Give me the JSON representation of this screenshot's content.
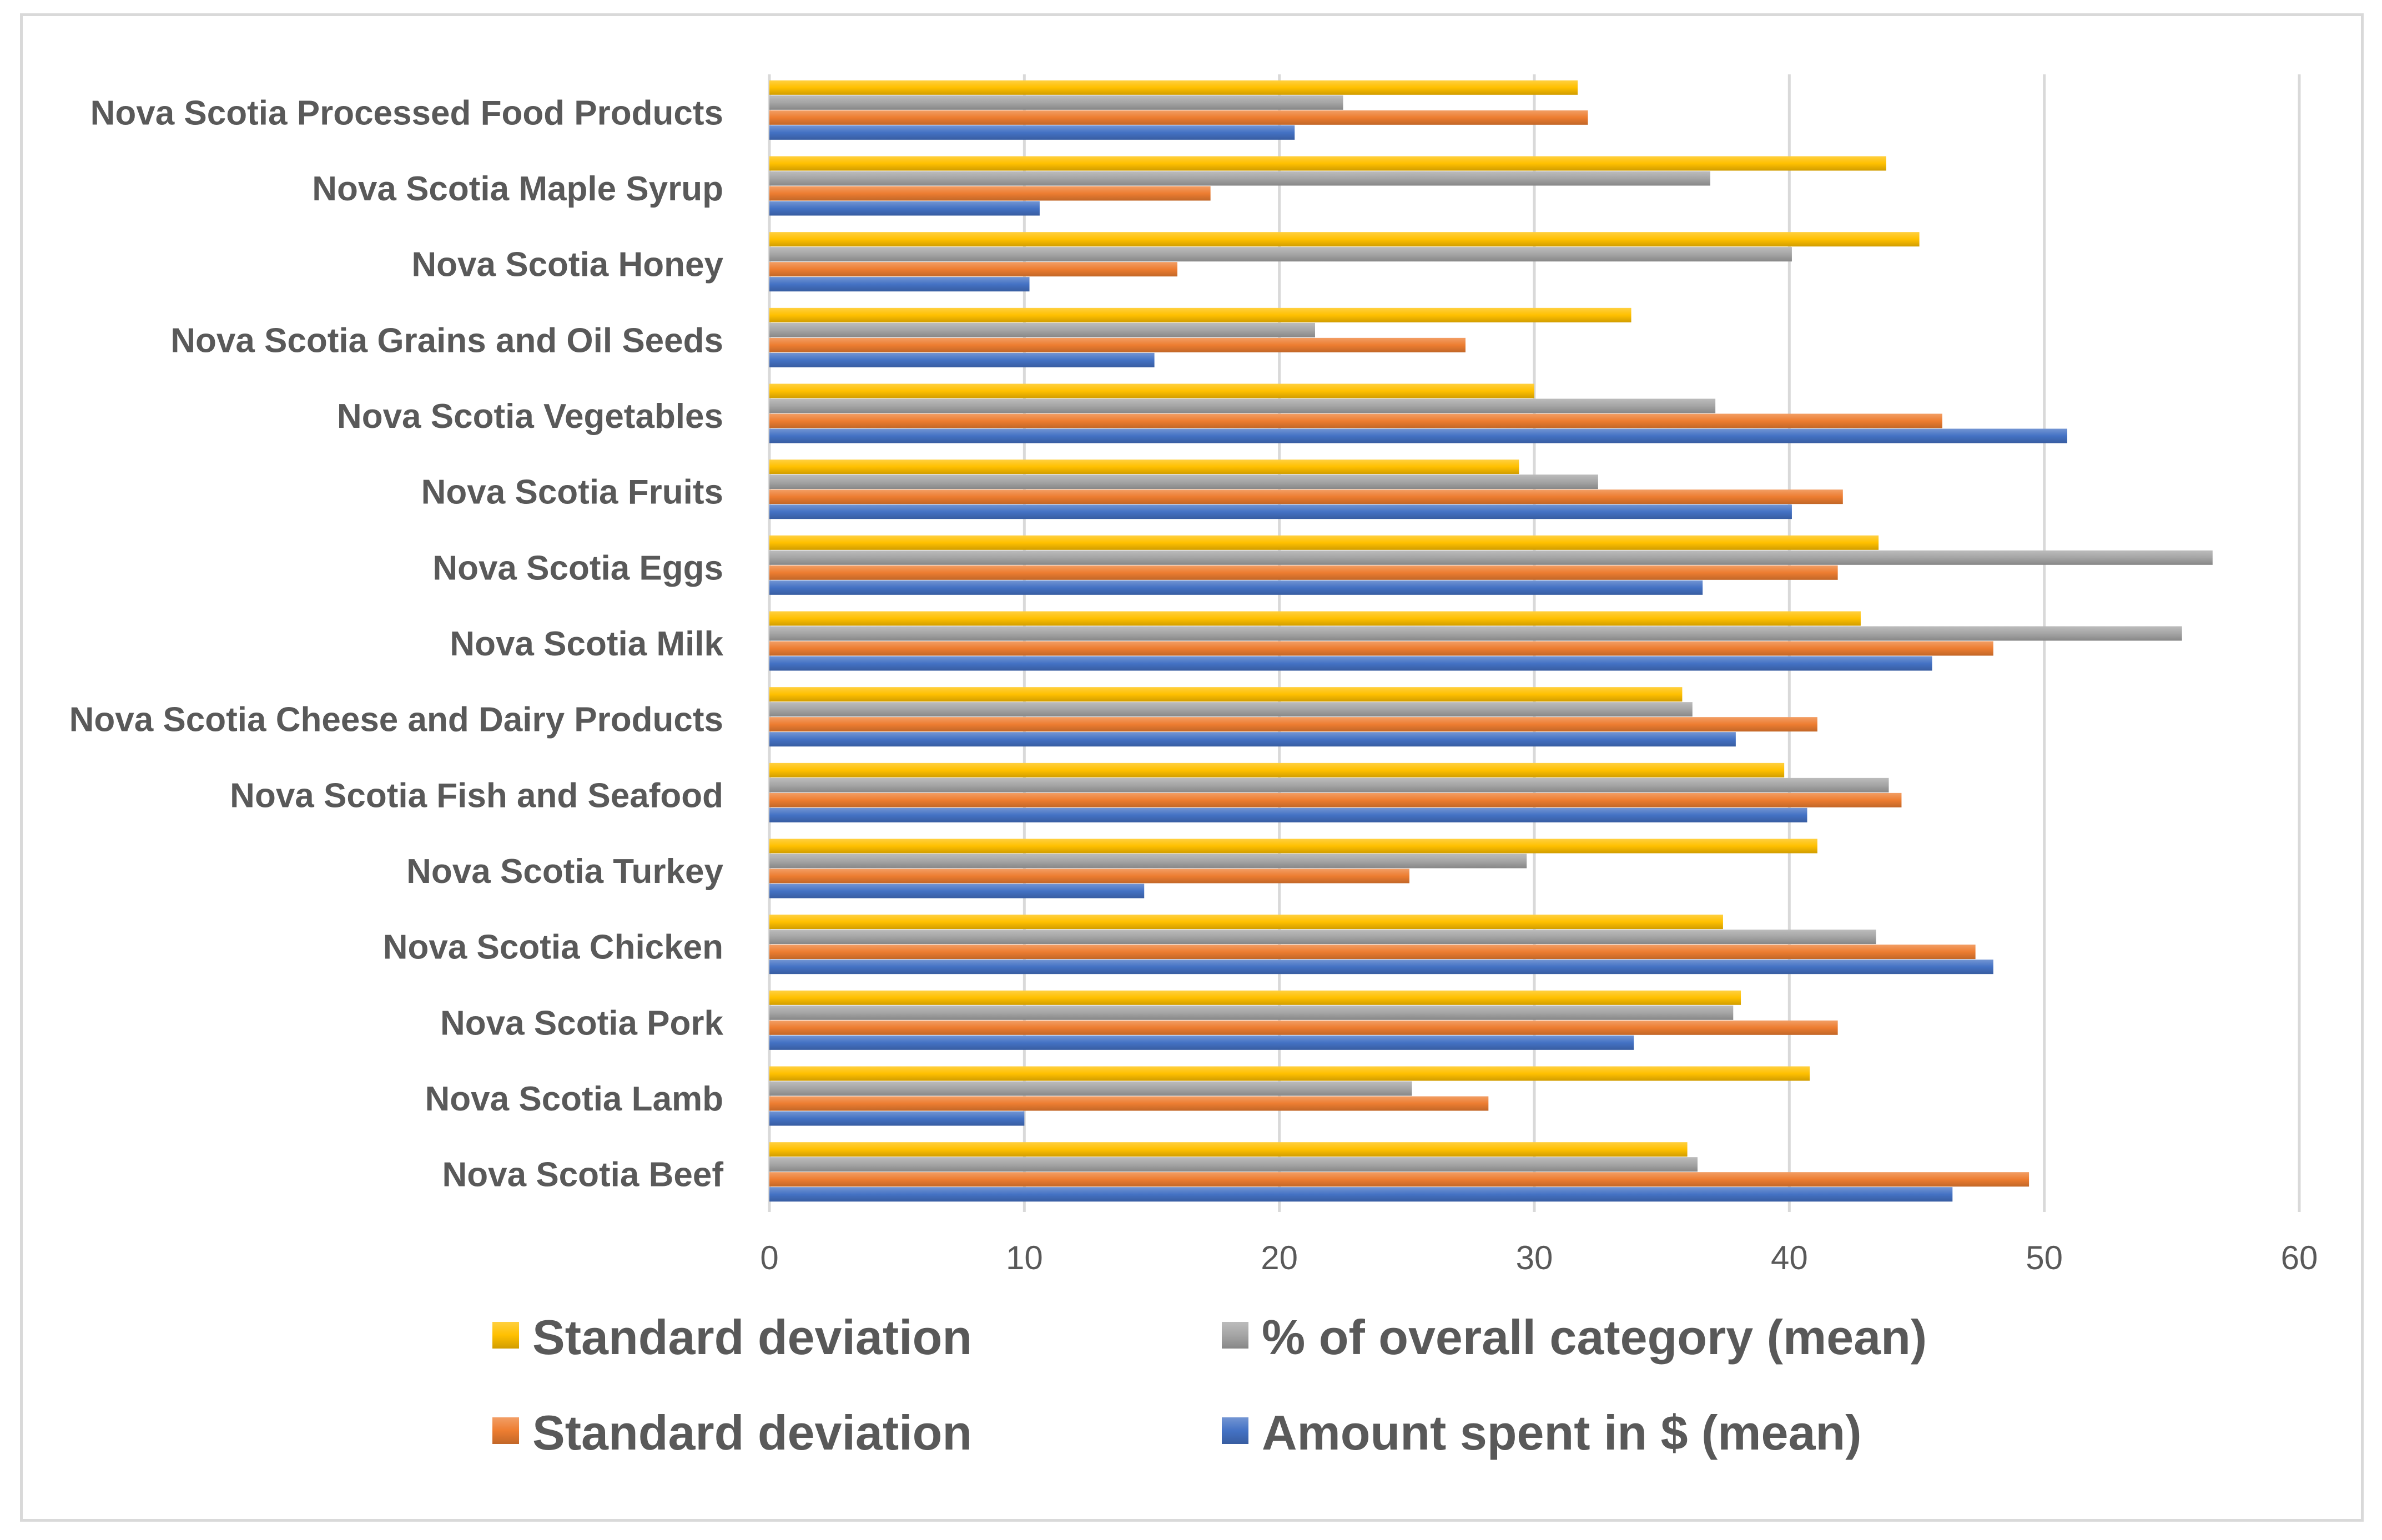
{
  "chart_data": {
    "type": "bar",
    "orientation": "horizontal",
    "title": "",
    "xlabel": "",
    "ylabel": "",
    "xlim": [
      0,
      60
    ],
    "x_ticks": [
      0,
      10,
      20,
      30,
      40,
      50,
      60
    ],
    "grid": true,
    "legend_position": "bottom",
    "categories": [
      "Nova Scotia Processed Food Products",
      "Nova Scotia Maple Syrup",
      "Nova Scotia Honey",
      "Nova Scotia Grains and Oil Seeds",
      "Nova Scotia Vegetables",
      "Nova Scotia Fruits",
      "Nova Scotia Eggs",
      "Nova Scotia Milk",
      "Nova Scotia Cheese and Dairy Products",
      "Nova Scotia Fish and Seafood",
      "Nova Scotia Turkey",
      "Nova Scotia Chicken",
      "Nova Scotia Pork",
      "Nova Scotia Lamb",
      "Nova Scotia Beef"
    ],
    "series": [
      {
        "name": "Standard deviation",
        "color": "#ffc000",
        "values": [
          31.7,
          43.8,
          45.1,
          33.8,
          30.0,
          29.4,
          43.5,
          42.8,
          35.8,
          39.8,
          41.1,
          37.4,
          38.1,
          40.8,
          36.0
        ]
      },
      {
        "name": "% of overall category (mean)",
        "color": "#a5a5a5",
        "values": [
          22.5,
          36.9,
          40.1,
          21.4,
          37.1,
          32.5,
          56.6,
          55.4,
          36.2,
          43.9,
          29.7,
          43.4,
          37.8,
          25.2,
          36.4
        ]
      },
      {
        "name": "Standard deviation",
        "color": "#ed7d31",
        "values": [
          32.1,
          17.3,
          16.0,
          27.3,
          46.0,
          42.1,
          41.9,
          48.0,
          41.1,
          44.4,
          25.1,
          47.3,
          41.9,
          28.2,
          49.4
        ]
      },
      {
        "name": "Amount spent in $ (mean)",
        "color": "#4472c4",
        "values": [
          20.6,
          10.6,
          10.2,
          15.1,
          50.9,
          40.1,
          36.6,
          45.6,
          37.9,
          40.7,
          14.7,
          48.0,
          33.9,
          10.0,
          46.4
        ]
      }
    ]
  }
}
